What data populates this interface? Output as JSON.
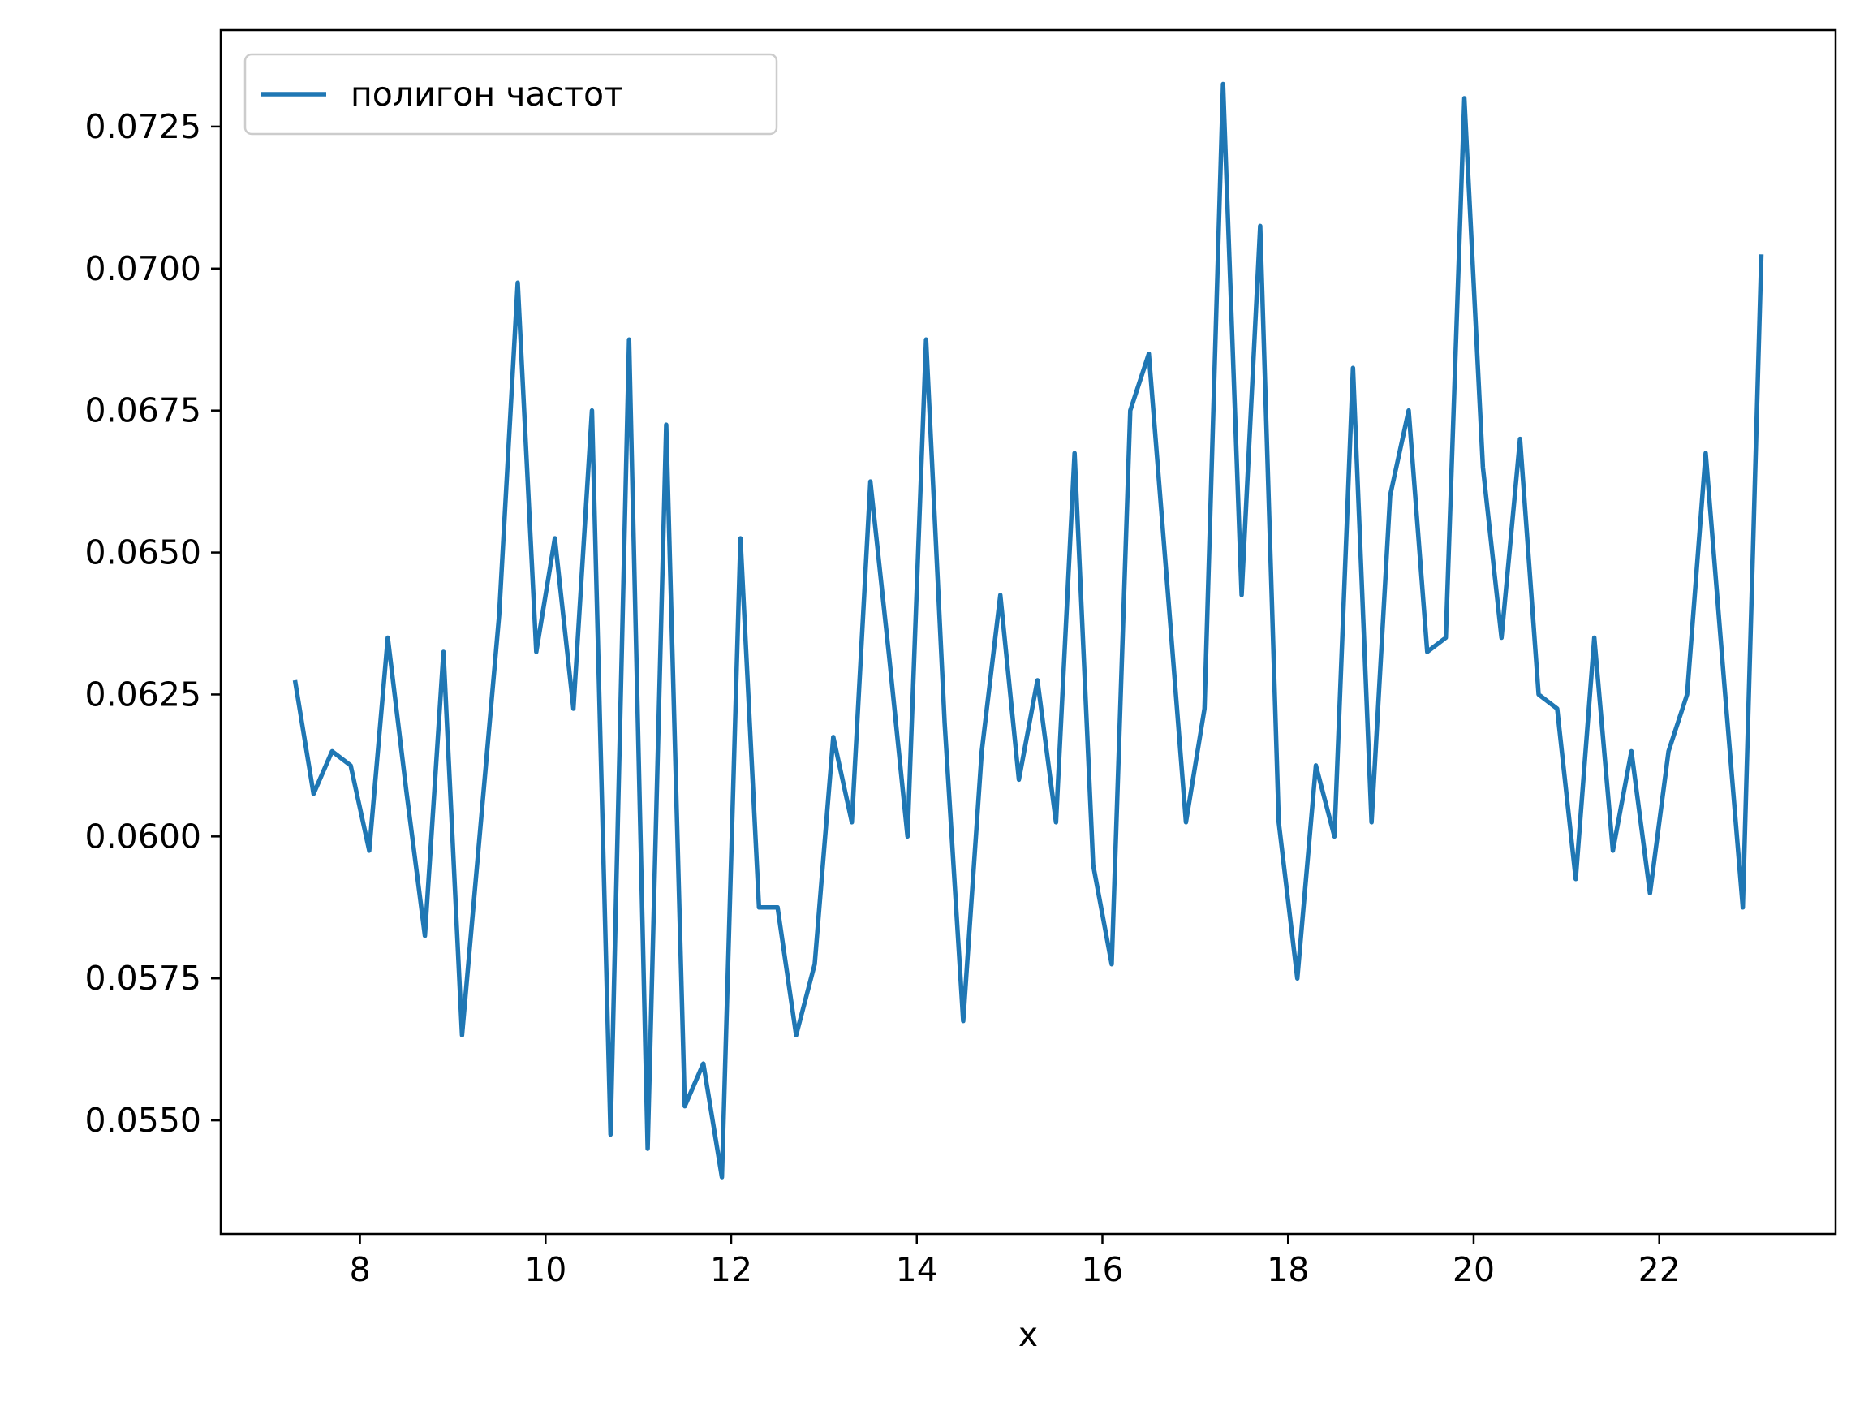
{
  "chart_data": {
    "type": "line",
    "title": "",
    "xlabel": "x",
    "ylabel": "",
    "xlim": [
      6.5,
      23.9
    ],
    "ylim": [
      0.053,
      0.0742
    ],
    "xticks": [
      8,
      10,
      12,
      14,
      16,
      18,
      20,
      22
    ],
    "xtick_labels": [
      "8",
      "10",
      "12",
      "14",
      "16",
      "18",
      "20",
      "22"
    ],
    "yticks": [
      0.055,
      0.0575,
      0.06,
      0.0625,
      0.065,
      0.0675,
      0.07,
      0.0725
    ],
    "ytick_labels": [
      "0.0550",
      "0.0575",
      "0.0600",
      "0.0625",
      "0.0650",
      "0.0675",
      "0.0700",
      "0.0725"
    ],
    "grid": false,
    "legend_position": "upper-left",
    "series": [
      {
        "name": "полигон частот",
        "color": "#1f77b4",
        "x": [
          7.3,
          7.5,
          7.7,
          7.9,
          8.1,
          8.3,
          8.5,
          8.7,
          8.9,
          9.1,
          9.3,
          9.5,
          9.7,
          9.9,
          10.1,
          10.3,
          10.5,
          10.7,
          10.9,
          11.1,
          11.3,
          11.5,
          11.7,
          11.9,
          12.1,
          12.3,
          12.5,
          12.7,
          12.9,
          13.1,
          13.3,
          13.5,
          13.7,
          13.9,
          14.1,
          14.3,
          14.5,
          14.7,
          14.9,
          15.1,
          15.3,
          15.5,
          15.7,
          15.9,
          16.1,
          16.3,
          16.5,
          16.7,
          16.9,
          17.1,
          17.3,
          17.5,
          17.7,
          17.9,
          18.1,
          18.3,
          18.5,
          18.7,
          18.9,
          19.1,
          19.3,
          19.5,
          19.7,
          19.9,
          20.1,
          20.3,
          20.5,
          20.7,
          20.9,
          21.1,
          21.3,
          21.5,
          21.7,
          21.9,
          22.1,
          22.3,
          22.5,
          22.7,
          22.9,
          23.1
        ],
        "y": [
          0.06275,
          0.06075,
          0.0615,
          0.06125,
          0.05975,
          0.0635,
          0.0608,
          0.05825,
          0.06325,
          0.0565,
          0.0602,
          0.0639,
          0.06975,
          0.06325,
          0.06525,
          0.06225,
          0.0675,
          0.05475,
          0.06875,
          0.0545,
          0.06725,
          0.05525,
          0.056,
          0.054,
          0.06525,
          0.05875,
          0.05875,
          0.0565,
          0.05775,
          0.06175,
          0.06025,
          0.06625,
          0.0632,
          0.06,
          0.06875,
          0.062,
          0.05675,
          0.0615,
          0.06425,
          0.061,
          0.06275,
          0.06025,
          0.06675,
          0.0595,
          0.05775,
          0.0675,
          0.0685,
          0.0644,
          0.06025,
          0.06225,
          0.07325,
          0.06425,
          0.07075,
          0.06025,
          0.0575,
          0.06125,
          0.06,
          0.06825,
          0.06025,
          0.066,
          0.0675,
          0.06325,
          0.0635,
          0.073,
          0.0665,
          0.0635,
          0.067,
          0.0625,
          0.06225,
          0.05925,
          0.0635,
          0.05975,
          0.0615,
          0.059,
          0.0615,
          0.0625,
          0.06675,
          0.0627,
          0.05875,
          0.07025
        ]
      }
    ]
  }
}
